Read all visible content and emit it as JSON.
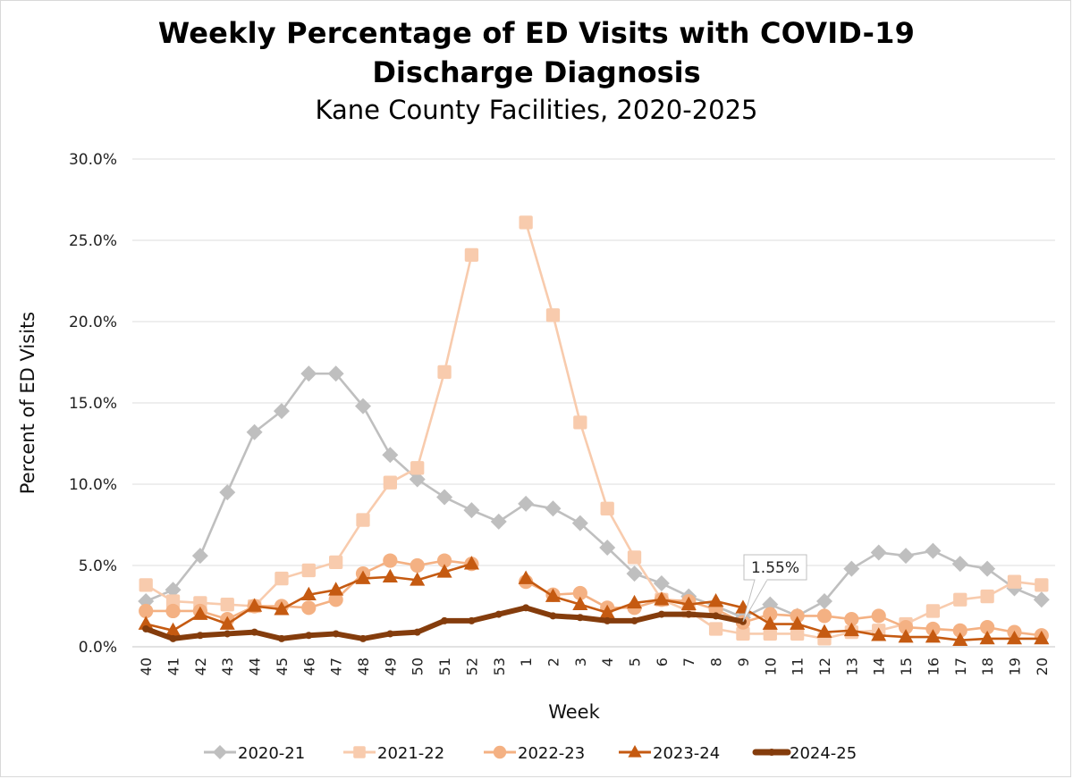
{
  "chart_data": {
    "type": "line",
    "title": "Weekly Percentage of ED Visits with COVID-19",
    "title_line2": "Discharge Diagnosis",
    "subtitle": "Kane County Facilities, 2020-2025",
    "xlabel": "Week",
    "ylabel": "Percent of ED Visits",
    "ylim": [
      0,
      30
    ],
    "yticks": [
      0,
      5,
      10,
      15,
      20,
      25,
      30
    ],
    "ytick_labels": [
      "0.0%",
      "5.0%",
      "10.0%",
      "15.0%",
      "20.0%",
      "25.0%",
      "30.0%"
    ],
    "grid": "horizontal",
    "legend_position": "bottom",
    "categories": [
      "40",
      "41",
      "42",
      "43",
      "44",
      "45",
      "46",
      "47",
      "48",
      "49",
      "50",
      "51",
      "52",
      "53",
      "1",
      "2",
      "3",
      "4",
      "5",
      "6",
      "7",
      "8",
      "9",
      "10",
      "11",
      "12",
      "13",
      "14",
      "15",
      "16",
      "17",
      "18",
      "19",
      "20"
    ],
    "series": [
      {
        "name": "2020-21",
        "color": "#bfbfbf",
        "marker": "diamond",
        "values": [
          2.8,
          3.5,
          5.6,
          9.5,
          13.2,
          14.5,
          16.8,
          16.8,
          14.8,
          11.8,
          10.3,
          9.2,
          8.4,
          7.7,
          8.8,
          8.5,
          7.6,
          6.1,
          4.5,
          3.9,
          3.1,
          2.5,
          1.8,
          2.6,
          1.9,
          2.8,
          4.8,
          5.8,
          5.6,
          5.9,
          5.1,
          4.8,
          3.6,
          2.9
        ]
      },
      {
        "name": "2021-22",
        "color": "#f8cbad",
        "marker": "square",
        "values": [
          3.8,
          2.8,
          2.7,
          2.6,
          2.5,
          4.2,
          4.7,
          5.2,
          7.8,
          10.1,
          11.0,
          16.9,
          24.1,
          null,
          26.1,
          20.4,
          13.8,
          8.5,
          5.5,
          2.9,
          2.2,
          1.1,
          0.8,
          0.8,
          0.8,
          0.5,
          0.9,
          1.0,
          1.4,
          2.2,
          2.9,
          3.1,
          4.0,
          3.8
        ]
      },
      {
        "name": "2022-23",
        "color": "#f4b183",
        "marker": "circle",
        "values": [
          2.2,
          2.2,
          2.2,
          1.7,
          2.5,
          2.5,
          2.4,
          2.9,
          4.5,
          5.3,
          5.0,
          5.3,
          5.1,
          null,
          4.0,
          3.2,
          3.3,
          2.4,
          2.4,
          2.9,
          2.8,
          2.3,
          1.5,
          2.0,
          1.9,
          1.9,
          1.7,
          1.9,
          1.2,
          1.1,
          1.0,
          1.2,
          0.9,
          0.7
        ]
      },
      {
        "name": "2023-24",
        "color": "#c55a11",
        "marker": "triangle",
        "values": [
          1.4,
          1.0,
          2.0,
          1.4,
          2.5,
          2.3,
          3.2,
          3.5,
          4.2,
          4.3,
          4.1,
          4.6,
          5.1,
          null,
          4.2,
          3.1,
          2.6,
          2.1,
          2.7,
          2.9,
          2.6,
          2.8,
          2.4,
          1.4,
          1.4,
          0.9,
          1.0,
          0.7,
          0.6,
          0.6,
          0.4,
          0.5,
          0.5,
          0.5
        ]
      },
      {
        "name": "2024-25",
        "color": "#843c0c",
        "marker": "line-thick",
        "values": [
          1.1,
          0.5,
          0.7,
          0.8,
          0.9,
          0.5,
          0.7,
          0.8,
          0.5,
          0.8,
          0.9,
          1.6,
          1.6,
          2.0,
          2.4,
          1.9,
          1.8,
          1.6,
          1.6,
          2.0,
          2.0,
          1.9,
          1.55,
          null,
          null,
          null,
          null,
          null,
          null,
          null,
          null,
          null,
          null,
          null
        ]
      }
    ],
    "annotations": [
      {
        "series": "2024-25",
        "category": "9",
        "value": 1.55,
        "label": "1.55%"
      }
    ]
  }
}
